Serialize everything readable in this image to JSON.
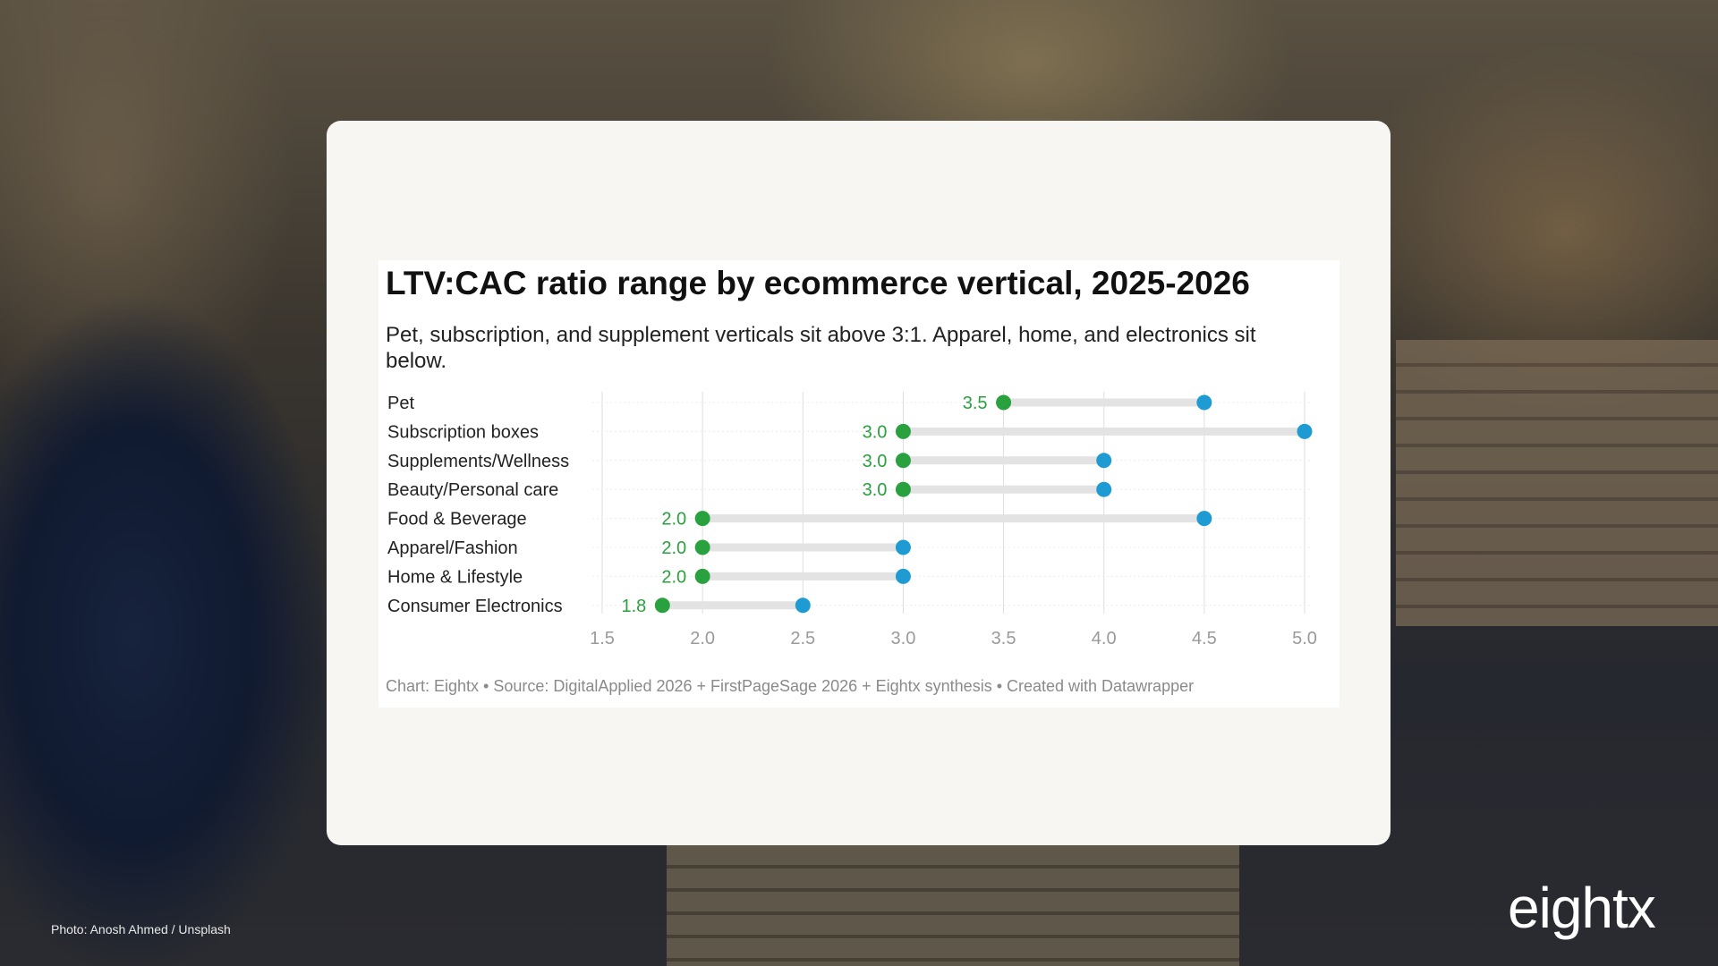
{
  "photo_credit": "Photo: Anosh Ahmed / Unsplash",
  "brand": "eightx",
  "colors": {
    "low_dot": "#2aa13f",
    "high_dot": "#1e9bd3",
    "range_bar": "#e3e3e3",
    "grid": "#dedede"
  },
  "chart_data": {
    "type": "range-dot",
    "title": "LTV:CAC ratio range by ecommerce vertical, 2025-2026",
    "subtitle": "Pet, subscription, and supplement verticals sit above 3:1. Apparel, home, and electronics sit below.",
    "footer": "Chart: Eightx • Source: DigitalApplied 2026 + FirstPageSage 2026 + Eightx synthesis • Created with Datawrapper",
    "categories": [
      "Pet",
      "Subscription boxes",
      "Supplements/Wellness",
      "Beauty/Personal care",
      "Food & Beverage",
      "Apparel/Fashion",
      "Home & Lifestyle",
      "Consumer Electronics"
    ],
    "series": [
      {
        "values": [
          3.5,
          3.0,
          3.0,
          3.0,
          2.0,
          2.0,
          2.0,
          1.8
        ]
      },
      {
        "values": [
          4.5,
          5.0,
          4.0,
          4.0,
          4.5,
          3.0,
          3.0,
          2.5
        ]
      }
    ],
    "low_labels": [
      "3.5",
      "3.0",
      "3.0",
      "3.0",
      "2.0",
      "2.0",
      "2.0",
      "1.8"
    ],
    "xticks": [
      1.5,
      2.0,
      2.5,
      3.0,
      3.5,
      4.0,
      4.5,
      5.0
    ],
    "xtick_labels": [
      "1.5",
      "2.0",
      "2.5",
      "3.0",
      "3.5",
      "4.0",
      "4.5",
      "5.0"
    ],
    "xlim": [
      1.5,
      5.0
    ],
    "grid": true,
    "legend": false
  }
}
